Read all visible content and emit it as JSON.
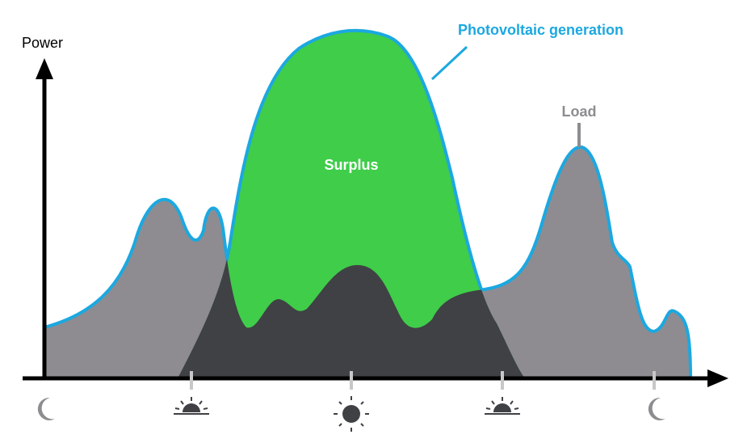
{
  "axis": {
    "y_label": "Power"
  },
  "labels": {
    "pv": "Photovoltaic generation",
    "load": "Load",
    "surplus": "Surplus"
  }
}
